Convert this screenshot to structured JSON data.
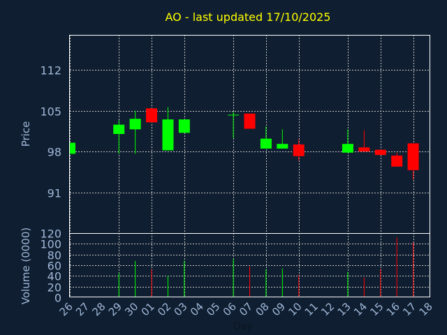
{
  "chart_data": {
    "type": "candlestick",
    "title": "AO - last updated 17/10/2025",
    "xlabel": "Day",
    "price_panel": {
      "ylabel": "Price",
      "ylim": [
        84,
        118
      ],
      "yticks": [
        91,
        98,
        105,
        112
      ],
      "grid": true
    },
    "volume_panel": {
      "ylabel": "Volume (0000)",
      "ylim": [
        0,
        120
      ],
      "yticks": [
        0,
        20,
        40,
        60,
        80,
        100,
        120
      ],
      "grid": true
    },
    "x_tick_labels": [
      "26",
      "27",
      "28",
      "29",
      "30",
      "01",
      "02",
      "03",
      "04",
      "05",
      "06",
      "07",
      "08",
      "09",
      "10",
      "11",
      "12",
      "13",
      "14",
      "15",
      "16",
      "17",
      "18"
    ],
    "x_grid_days": [
      "26",
      "29",
      "01",
      "03",
      "06",
      "08",
      "10",
      "13",
      "15",
      "17"
    ],
    "colors": {
      "background": "#0f1e30",
      "axes": "#ffffff",
      "grid": "#c8c8c8",
      "up": "#00ff00",
      "down": "#ff0000",
      "title": "#ffff00",
      "labels": "#a0b8d8"
    },
    "candles": [
      {
        "day": "26",
        "open": 97.6,
        "high": 99.5,
        "low": 97.6,
        "close": 99.5,
        "volume": 0
      },
      {
        "day": "29",
        "open": 101.0,
        "high": 103.4,
        "low": 97.6,
        "close": 102.6,
        "volume": 45
      },
      {
        "day": "30",
        "open": 101.8,
        "high": 105.0,
        "low": 97.6,
        "close": 103.6,
        "volume": 68
      },
      {
        "day": "01",
        "open": 105.4,
        "high": 105.4,
        "low": 103.0,
        "close": 103.0,
        "volume": 52
      },
      {
        "day": "02",
        "open": 98.2,
        "high": 105.6,
        "low": 98.2,
        "close": 103.5,
        "volume": 40
      },
      {
        "day": "03",
        "open": 101.2,
        "high": 103.5,
        "low": 101.2,
        "close": 103.5,
        "volume": 68
      },
      {
        "day": "06",
        "open": 104.3,
        "high": 104.8,
        "low": 100.3,
        "close": 104.3,
        "volume": 72
      },
      {
        "day": "07",
        "open": 104.5,
        "high": 104.5,
        "low": 101.9,
        "close": 101.9,
        "volume": 58
      },
      {
        "day": "08",
        "open": 98.5,
        "high": 102.3,
        "low": 98.5,
        "close": 100.2,
        "volume": 52
      },
      {
        "day": "09",
        "open": 98.5,
        "high": 101.8,
        "low": 98.5,
        "close": 99.3,
        "volume": 54
      },
      {
        "day": "10",
        "open": 99.2,
        "high": 100.1,
        "low": 96.4,
        "close": 97.2,
        "volume": 42
      },
      {
        "day": "13",
        "open": 97.8,
        "high": 101.8,
        "low": 97.8,
        "close": 99.3,
        "volume": 47
      },
      {
        "day": "14",
        "open": 98.7,
        "high": 101.6,
        "low": 98.0,
        "close": 98.0,
        "volume": 37
      },
      {
        "day": "15",
        "open": 98.3,
        "high": 98.3,
        "low": 97.4,
        "close": 97.4,
        "volume": 53
      },
      {
        "day": "16",
        "open": 97.3,
        "high": 97.8,
        "low": 95.4,
        "close": 95.4,
        "volume": 112
      },
      {
        "day": "17",
        "open": 99.4,
        "high": 99.4,
        "low": 93.2,
        "close": 94.8,
        "volume": 103
      }
    ]
  }
}
